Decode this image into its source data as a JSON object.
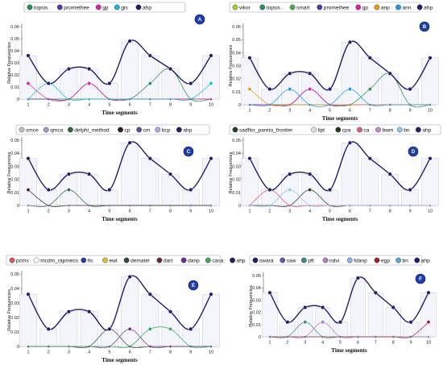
{
  "chart_data": [
    {
      "panel_label": "A",
      "type": "line",
      "xlabel": "Time segments",
      "ylabel": "Relative Frequencies",
      "x": [
        1,
        2,
        3,
        4,
        5,
        6,
        7,
        8,
        9,
        10
      ],
      "ylim": [
        0,
        0.06
      ],
      "yticks": [
        "0",
        "0.01",
        "0.02",
        "0.03",
        "0.04",
        "0.05",
        "0.06"
      ],
      "bars": [
        0.036,
        0.013,
        0.025,
        0.025,
        0.013,
        0.048,
        0.036,
        0.025,
        0.013,
        0.036
      ],
      "series": [
        {
          "name": "topsis",
          "color": "#2e8b57",
          "values": [
            0,
            0,
            0,
            0,
            0,
            0,
            0.013,
            0.025,
            0,
            0
          ]
        },
        {
          "name": "promethee",
          "color": "#4b3aa8",
          "values": [
            0,
            0,
            0,
            0.013,
            0,
            0,
            0,
            0,
            0,
            0
          ]
        },
        {
          "name": "gp",
          "color": "#d6249f",
          "values": [
            0.013,
            0,
            0,
            0.013,
            0,
            0,
            0,
            0,
            0,
            0
          ]
        },
        {
          "name": "gis",
          "color": "#1bb6cf",
          "values": [
            0,
            0.013,
            0,
            0,
            0,
            0,
            0,
            0,
            0,
            0.013
          ]
        },
        {
          "name": "ahp",
          "color": "#1f1f6b",
          "values": [
            0.036,
            0.013,
            0.025,
            0.025,
            0.013,
            0.048,
            0.036,
            0.025,
            0.013,
            0.036
          ]
        }
      ]
    },
    {
      "panel_label": "B",
      "type": "line",
      "xlabel": "Time segments",
      "ylabel": "Relative Frequencies",
      "x": [
        1,
        2,
        3,
        4,
        5,
        6,
        7,
        8,
        9,
        10
      ],
      "ylim": [
        0,
        0.06
      ],
      "yticks": [
        "0",
        "0.01",
        "0.02",
        "0.03",
        "0.04",
        "0.05",
        "0.06"
      ],
      "bars": [
        0.036,
        0.012,
        0.024,
        0.024,
        0.012,
        0.048,
        0.036,
        0.024,
        0.012,
        0.036
      ],
      "series": [
        {
          "name": "vikor",
          "color": "#9ccf3c",
          "values": [
            0,
            0,
            0,
            0,
            0,
            0,
            0,
            0,
            0,
            0
          ]
        },
        {
          "name": "topsis",
          "color": "#2e8b57",
          "values": [
            0,
            0,
            0,
            0,
            0,
            0,
            0.012,
            0.024,
            0,
            0
          ]
        },
        {
          "name": "smart",
          "color": "#4fa84f",
          "values": [
            0,
            0,
            0,
            0,
            0,
            0,
            0,
            0,
            0,
            0
          ]
        },
        {
          "name": "promethee",
          "color": "#4b3aa8",
          "values": [
            0,
            0,
            0,
            0.012,
            0,
            0,
            0,
            0,
            0,
            0
          ]
        },
        {
          "name": "gp",
          "color": "#d6249f",
          "values": [
            0,
            0,
            0,
            0.012,
            0,
            0,
            0,
            0,
            0,
            0
          ]
        },
        {
          "name": "anp",
          "color": "#e69a16",
          "values": [
            0.012,
            0,
            0,
            0,
            0,
            0,
            0,
            0,
            0,
            0
          ]
        },
        {
          "name": "ann",
          "color": "#1e9be0",
          "values": [
            0,
            0,
            0.012,
            0,
            0,
            0.012,
            0,
            0,
            0,
            0
          ]
        },
        {
          "name": "ahp",
          "color": "#1f1f6b",
          "values": [
            0.036,
            0.012,
            0.024,
            0.024,
            0.012,
            0.048,
            0.036,
            0.024,
            0.012,
            0.036
          ]
        }
      ]
    },
    {
      "panel_label": "C",
      "type": "line",
      "xlabel": "Time segments",
      "ylabel": "Relative Frequencies",
      "x": [
        1,
        2,
        3,
        4,
        5,
        6,
        7,
        8,
        9,
        10
      ],
      "ylim": [
        0,
        0.05
      ],
      "yticks": [
        "0",
        "0.01",
        "0.02",
        "0.03",
        "0.04",
        "0.05"
      ],
      "bars": [
        0.036,
        0.012,
        0.024,
        0.024,
        0.012,
        0.048,
        0.036,
        0.024,
        0.012,
        0.036
      ],
      "series": [
        {
          "name": "smce",
          "color": "#bfbfbf",
          "values": [
            0,
            0,
            0,
            0,
            0,
            0,
            0,
            0,
            0,
            0
          ]
        },
        {
          "name": "qmca",
          "color": "#9c9cc8",
          "values": [
            0,
            0,
            0,
            0,
            0,
            0,
            0,
            0,
            0,
            0
          ]
        },
        {
          "name": "delphi_method",
          "color": "#2f6b3c",
          "values": [
            0,
            0,
            0.012,
            0,
            0,
            0,
            0,
            0,
            0,
            0
          ]
        },
        {
          "name": "cp",
          "color": "#3a1f1f",
          "values": [
            0.012,
            0,
            0,
            0,
            0,
            0,
            0,
            0,
            0,
            0
          ]
        },
        {
          "name": "cm",
          "color": "#5a4f9a",
          "values": [
            0,
            0,
            0,
            0,
            0,
            0,
            0,
            0,
            0,
            0
          ]
        },
        {
          "name": "bcp",
          "color": "#b7a6e0",
          "values": [
            0,
            0,
            0,
            0,
            0,
            0,
            0,
            0,
            0,
            0
          ]
        },
        {
          "name": "ahp",
          "color": "#1f1f6b",
          "values": [
            0.036,
            0.012,
            0.024,
            0.024,
            0.012,
            0.048,
            0.036,
            0.024,
            0.012,
            0.036
          ]
        }
      ]
    },
    {
      "panel_label": "D",
      "type": "line",
      "xlabel": "Time segments",
      "ylabel": "Relative Frequencies",
      "x": [
        1,
        2,
        3,
        4,
        5,
        6,
        7,
        8,
        9,
        10
      ],
      "ylim": [
        0,
        0.05
      ],
      "yticks": [
        "0",
        "0.01",
        "0.02",
        "0.03",
        "0.04",
        "0.05"
      ],
      "bars": [
        0.036,
        0.012,
        0.024,
        0.024,
        0.012,
        0.048,
        0.036,
        0.024,
        0.012,
        0.036
      ],
      "series": [
        {
          "name": "sadflor_pareto_frontier",
          "color": "#26402a",
          "values": [
            0,
            0,
            0,
            0.012,
            0,
            0,
            0,
            0,
            0,
            0
          ]
        },
        {
          "name": "lipt",
          "color": "#e0e0e0",
          "values": [
            0,
            0,
            0,
            0,
            0,
            0,
            0,
            0,
            0,
            0
          ]
        },
        {
          "name": "cpa",
          "color": "#1f3a1f",
          "values": [
            0,
            0,
            0,
            0,
            0,
            0,
            0,
            0,
            0,
            0
          ]
        },
        {
          "name": "ca",
          "color": "#e05a7a",
          "values": [
            0,
            0.012,
            0,
            0,
            0,
            0,
            0,
            0,
            0,
            0
          ]
        },
        {
          "name": "bwm",
          "color": "#c08ac8",
          "values": [
            0,
            0,
            0,
            0,
            0,
            0,
            0,
            0,
            0,
            0
          ]
        },
        {
          "name": "bn",
          "color": "#8ec8e8",
          "values": [
            0,
            0,
            0.012,
            0,
            0,
            0,
            0,
            0,
            0,
            0
          ]
        },
        {
          "name": "ahp",
          "color": "#1f1f6b",
          "values": [
            0.036,
            0.012,
            0.024,
            0.024,
            0.012,
            0.048,
            0.036,
            0.024,
            0.012,
            0.036
          ]
        }
      ]
    },
    {
      "panel_label": "E",
      "type": "line",
      "xlabel": "Time segments",
      "ylabel": "Relative Frequencies",
      "x": [
        1,
        2,
        3,
        4,
        5,
        6,
        7,
        8,
        9,
        10
      ],
      "ylim": [
        0,
        0.05
      ],
      "yticks": [
        "0",
        "0.01",
        "0.02",
        "0.03",
        "0.04",
        "0.05"
      ],
      "bars": [
        0.036,
        0.012,
        0.024,
        0.024,
        0.012,
        0.048,
        0.036,
        0.024,
        0.012,
        0.036
      ],
      "series": [
        {
          "name": "pcms",
          "color": "#e2525c",
          "values": [
            0,
            0,
            0,
            0,
            0,
            0,
            0,
            0,
            0,
            0
          ]
        },
        {
          "name": "mcdm_rapmecs",
          "color": "#ffffff",
          "values": [
            0,
            0,
            0,
            0,
            0,
            0,
            0,
            0,
            0,
            0
          ]
        },
        {
          "name": "fis",
          "color": "#2f3aa8",
          "values": [
            0,
            0,
            0,
            0,
            0,
            0,
            0,
            0,
            0,
            0
          ]
        },
        {
          "name": "ewt",
          "color": "#d6c229",
          "values": [
            0,
            0,
            0,
            0,
            0,
            0,
            0,
            0,
            0,
            0
          ]
        },
        {
          "name": "dematel",
          "color": "#2c4b3a",
          "values": [
            0,
            0,
            0,
            0,
            0.012,
            0,
            0,
            0,
            0,
            0
          ]
        },
        {
          "name": "dart",
          "color": "#5a2f2f",
          "values": [
            0,
            0,
            0,
            0,
            0,
            0,
            0,
            0,
            0,
            0
          ]
        },
        {
          "name": "danp",
          "color": "#6a2f88",
          "values": [
            0,
            0,
            0,
            0,
            0,
            0.012,
            0,
            0,
            0,
            0
          ]
        },
        {
          "name": "casa",
          "color": "#3aa85a",
          "values": [
            0,
            0,
            0,
            0,
            0,
            0,
            0.012,
            0.012,
            0,
            0
          ]
        },
        {
          "name": "ahp",
          "color": "#1f1f6b",
          "values": [
            0.036,
            0.012,
            0.024,
            0.024,
            0.012,
            0.048,
            0.036,
            0.024,
            0.012,
            0.036
          ]
        }
      ]
    },
    {
      "panel_label": "F",
      "type": "line",
      "xlabel": "Time segments",
      "ylabel": "Relative Frequencies",
      "x": [
        1,
        2,
        3,
        4,
        5,
        6,
        7,
        8,
        9,
        10
      ],
      "ylim": [
        0,
        0.05
      ],
      "yticks": [
        "0",
        "0.01",
        "0.02",
        "0.03",
        "0.04",
        "0.05"
      ],
      "bars": [
        0.036,
        0.012,
        0.024,
        0.024,
        0.012,
        0.048,
        0.036,
        0.024,
        0.012,
        0.036
      ],
      "series": [
        {
          "name": "swara",
          "color": "#1f1f6b",
          "values": [
            0,
            0,
            0,
            0,
            0,
            0,
            0,
            0,
            0,
            0
          ]
        },
        {
          "name": "saw",
          "color": "#5a5aa8",
          "values": [
            0,
            0,
            0,
            0,
            0,
            0,
            0,
            0,
            0,
            0
          ]
        },
        {
          "name": "pft",
          "color": "#3a8a8a",
          "values": [
            0,
            0,
            0.012,
            0,
            0,
            0,
            0,
            0,
            0,
            0
          ]
        },
        {
          "name": "ndvi",
          "color": "#b27ac0",
          "values": [
            0,
            0,
            0,
            0.012,
            0,
            0,
            0,
            0,
            0,
            0
          ]
        },
        {
          "name": "fdanp",
          "color": "#8ab4e8",
          "values": [
            0,
            0,
            0,
            0,
            0,
            0,
            0,
            0,
            0,
            0
          ]
        },
        {
          "name": "egp",
          "color": "#a01f2f",
          "values": [
            0,
            0,
            0,
            0,
            0,
            0,
            0,
            0,
            0,
            0.012
          ]
        },
        {
          "name": "bn",
          "color": "#5aa8d6",
          "values": [
            0,
            0,
            0,
            0,
            0,
            0,
            0,
            0,
            0,
            0
          ]
        },
        {
          "name": "ahp",
          "color": "#1f1f6b",
          "values": [
            0.036,
            0.012,
            0.024,
            0.024,
            0.012,
            0.048,
            0.036,
            0.024,
            0.012,
            0.036
          ]
        }
      ]
    }
  ]
}
